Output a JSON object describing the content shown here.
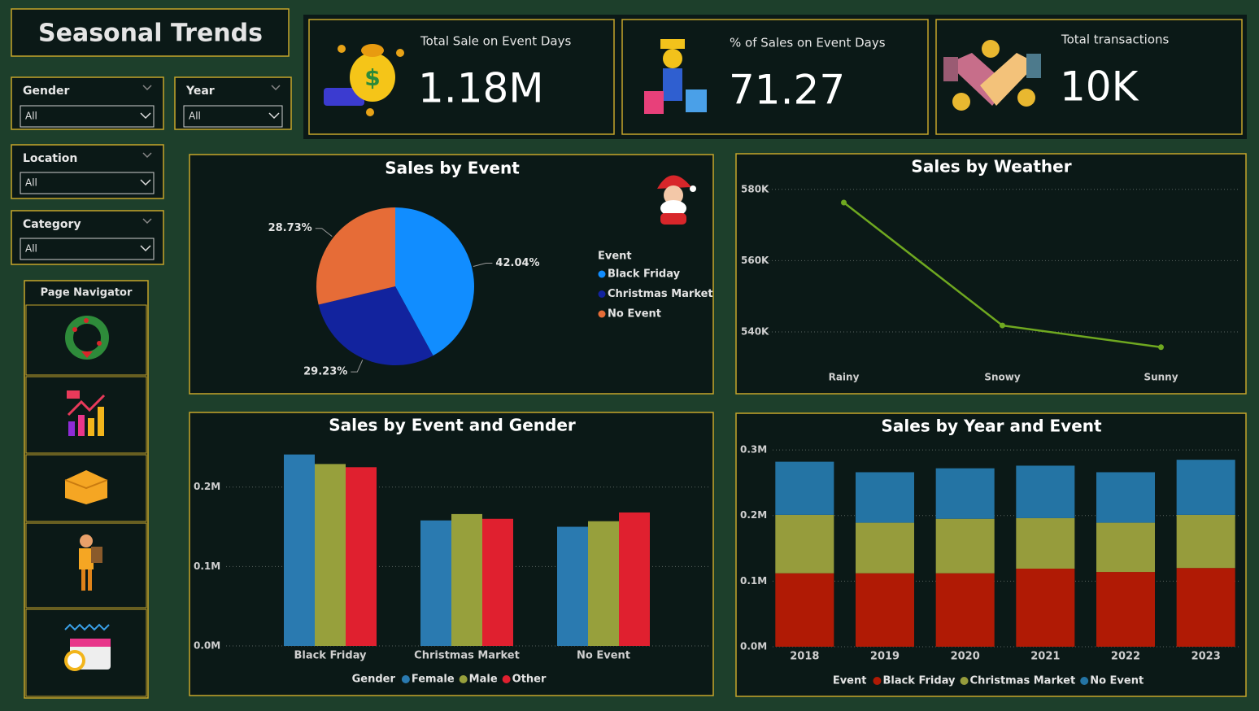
{
  "title": "Seasonal Trends",
  "kpis": [
    {
      "label": "Total Sale on Event Days",
      "value": "1.18M"
    },
    {
      "label": "% of Sales on Event Days",
      "value": "71.27"
    },
    {
      "label": "Total transactions",
      "value": "10K"
    }
  ],
  "filters": [
    {
      "label": "Gender",
      "selected": "All"
    },
    {
      "label": "Year",
      "selected": "All"
    },
    {
      "label": "Location",
      "selected": "All"
    },
    {
      "label": "Category",
      "selected": "All"
    }
  ],
  "navigator": {
    "title": "Page Navigator"
  },
  "chart_data": [
    {
      "type": "pie",
      "title": "Sales by Event",
      "legend_title": "Event",
      "legend": "right",
      "categories": [
        "Black Friday",
        "Christmas Market",
        "No Event"
      ],
      "values": [
        42.04,
        29.23,
        28.73
      ],
      "value_labels": [
        "42.04%",
        "29.23%",
        "28.73%"
      ],
      "colors": [
        "#118dff",
        "#12239e",
        "#e66c37"
      ]
    },
    {
      "type": "line",
      "title": "Sales by Weather",
      "categories": [
        "Rainy",
        "Snowy",
        "Sunny"
      ],
      "values": [
        576300,
        541800,
        535700
      ],
      "color": "#6fa820",
      "ylim": [
        532000,
        582000
      ],
      "yticks": [
        {
          "value": 540000,
          "label": "540K"
        },
        {
          "value": 560000,
          "label": "560K"
        },
        {
          "value": 580000,
          "label": "580K"
        }
      ],
      "grid": true
    },
    {
      "type": "bar",
      "title": "Sales by Event and Gender",
      "legend_title": "Gender",
      "legend": "bottom",
      "categories": [
        "Black Friday",
        "Christmas Market",
        "No Event"
      ],
      "series": [
        {
          "name": "Female",
          "color": "#2a7ab0",
          "values": [
            241000,
            158000,
            150000
          ]
        },
        {
          "name": "Male",
          "color": "#97a03c",
          "values": [
            229000,
            166000,
            157000
          ]
        },
        {
          "name": "Other",
          "color": "#e0202f",
          "values": [
            225000,
            160000,
            168000
          ]
        }
      ],
      "ylim": [
        0,
        255000
      ],
      "yticks": [
        {
          "value": 0,
          "label": "0.0M"
        },
        {
          "value": 100000,
          "label": "0.1M"
        },
        {
          "value": 200000,
          "label": "0.2M"
        }
      ],
      "grid": true
    },
    {
      "type": "bar",
      "stacked": true,
      "title": "Sales by Year and Event",
      "legend_title": "Event",
      "legend": "bottom",
      "categories": [
        "2018",
        "2019",
        "2020",
        "2021",
        "2022",
        "2023"
      ],
      "series": [
        {
          "name": "Black Friday",
          "color": "#b01a05",
          "values": [
            112000,
            112000,
            112000,
            119000,
            114000,
            120000
          ]
        },
        {
          "name": "Christmas Market",
          "color": "#969c3c",
          "values": [
            89000,
            77000,
            83000,
            77000,
            75000,
            81000
          ]
        },
        {
          "name": "No Event",
          "color": "#2474a4",
          "values": [
            81000,
            77000,
            77000,
            80000,
            77000,
            84000
          ]
        }
      ],
      "ylim": [
        0,
        310000
      ],
      "yticks": [
        {
          "value": 0,
          "label": "0.0M"
        },
        {
          "value": 100000,
          "label": "0.1M"
        },
        {
          "value": 200000,
          "label": "0.2M"
        },
        {
          "value": 300000,
          "label": "0.3M"
        }
      ],
      "grid": true
    }
  ]
}
